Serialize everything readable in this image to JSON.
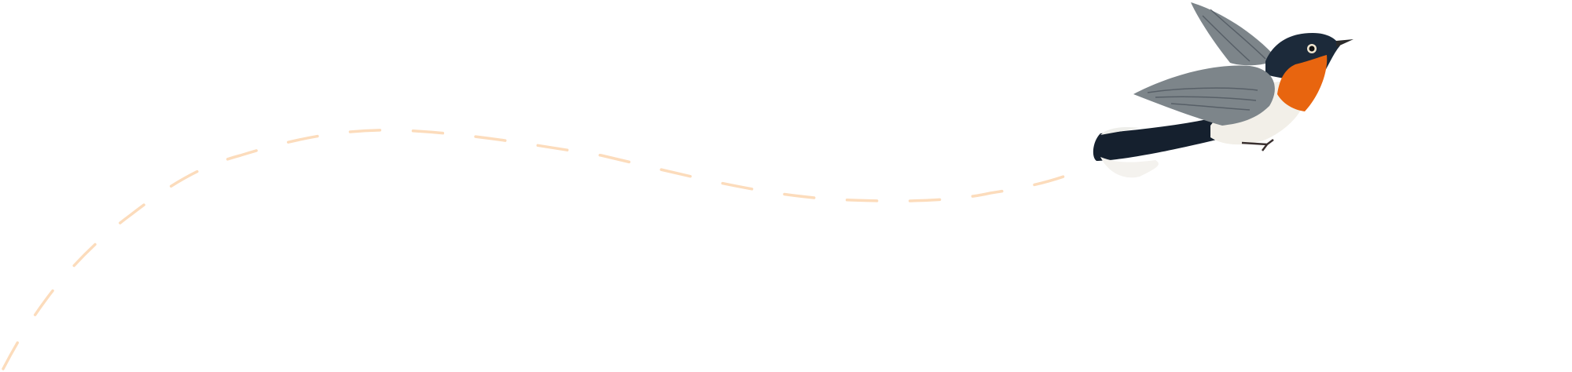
{
  "illustration": {
    "subject": "bird-in-flight",
    "colors": {
      "flight_path": "#fcdcbc",
      "throat": "#e8650f",
      "head": "#1c2a3a",
      "wing": "#7d858a",
      "belly": "#f2efe8",
      "tail": "#15202e"
    }
  }
}
